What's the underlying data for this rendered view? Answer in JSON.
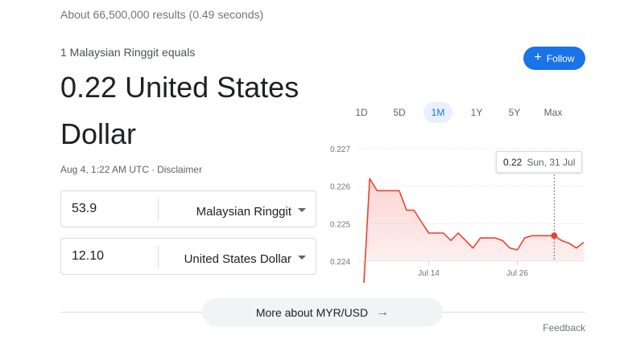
{
  "results_stats": "About 66,500,000 results (0.49 seconds)",
  "header": {
    "equals_label": "1 Malaysian Ringgit equals",
    "value_text": "0.22 United States Dollar"
  },
  "follow_button": {
    "icon": "plus-icon",
    "label": "Follow"
  },
  "timestamp": {
    "time": "Aug 4, 1:22 AM UTC",
    "separator": "·",
    "disclaimer": "Disclaimer"
  },
  "converter": {
    "from": {
      "amount": "53.9",
      "currency": "Malaysian Ringgit"
    },
    "to": {
      "amount": "12.10",
      "currency": "United States Dollar"
    }
  },
  "range_tabs": [
    "1D",
    "5D",
    "1M",
    "1Y",
    "5Y",
    "Max"
  ],
  "active_range": "1M",
  "tooltip": {
    "value": "0.22",
    "date": "Sun, 31 Jul"
  },
  "chart_data": {
    "type": "line",
    "x": [
      "Jul 5",
      "Jul 6",
      "Jul 7",
      "Jul 8",
      "Jul 9",
      "Jul 10",
      "Jul 11",
      "Jul 12",
      "Jul 13",
      "Jul 14",
      "Jul 15",
      "Jul 16",
      "Jul 17",
      "Jul 18",
      "Jul 19",
      "Jul 20",
      "Jul 21",
      "Jul 22",
      "Jul 23",
      "Jul 24",
      "Jul 25",
      "Jul 26",
      "Jul 27",
      "Jul 28",
      "Jul 29",
      "Jul 30",
      "Jul 31",
      "Aug 1",
      "Aug 2",
      "Aug 3",
      "Aug 4"
    ],
    "values": [
      0.22265,
      0.2262,
      0.22588,
      0.22588,
      0.22588,
      0.22588,
      0.22536,
      0.22536,
      0.22505,
      0.22475,
      0.22475,
      0.22475,
      0.22455,
      0.22475,
      0.22455,
      0.22435,
      0.22462,
      0.22462,
      0.22462,
      0.22455,
      0.22435,
      0.2243,
      0.22462,
      0.22468,
      0.22468,
      0.22468,
      0.22468,
      0.22455,
      0.22448,
      0.22435,
      0.2245
    ],
    "xticks": [
      "Jul 14",
      "Jul 26"
    ],
    "yticks": [
      "0.227",
      "0.226",
      "0.225",
      "0.224"
    ],
    "ylim": [
      0.224,
      0.227
    ],
    "highlight": {
      "x": "Jul 31",
      "value": 0.22468
    },
    "line_color": "#ea4335",
    "grid": true
  },
  "more_button": {
    "label": "More about MYR/USD",
    "icon": "arrow-right-icon"
  },
  "feedback": "Feedback",
  "colors": {
    "accent": "#1a73e8",
    "line": "#ea4335",
    "muted": "#70757a"
  }
}
